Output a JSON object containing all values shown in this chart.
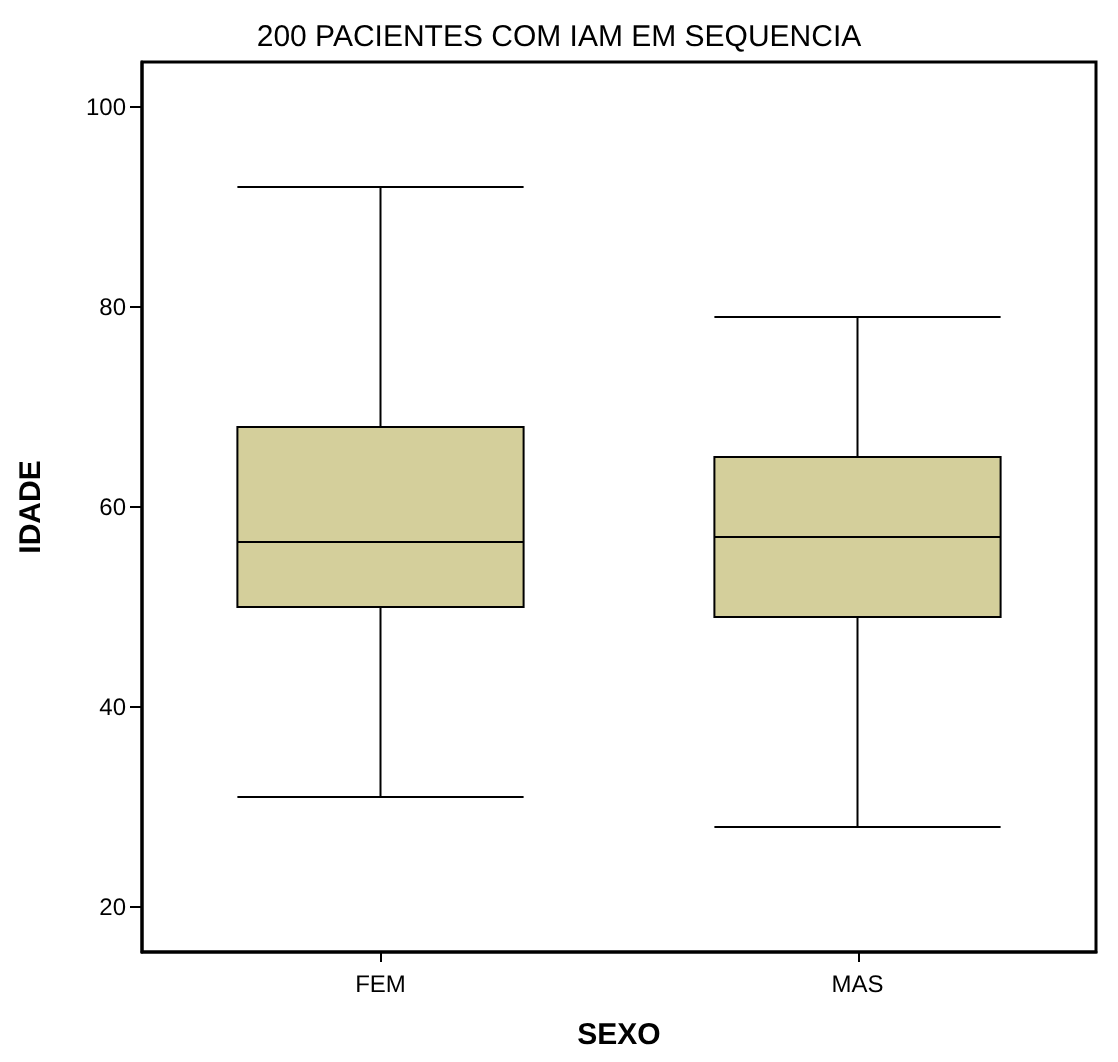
{
  "chart_data": {
    "type": "box",
    "title": "200 PACIENTES COM IAM EM SEQUENCIA",
    "xlabel": "SEXO",
    "ylabel": "IDADE",
    "categories": [
      "FEM",
      "MAS"
    ],
    "boxes": [
      {
        "low": 31,
        "q1": 50,
        "median": 56.5,
        "q3": 68,
        "high": 92
      },
      {
        "low": 28,
        "q1": 49,
        "median": 57,
        "q3": 65,
        "high": 79
      }
    ],
    "color": "#d4cf9b",
    "ylim": [
      15.5,
      104.5
    ],
    "yticks": [
      20,
      40,
      60,
      80,
      100
    ],
    "grid": false
  }
}
